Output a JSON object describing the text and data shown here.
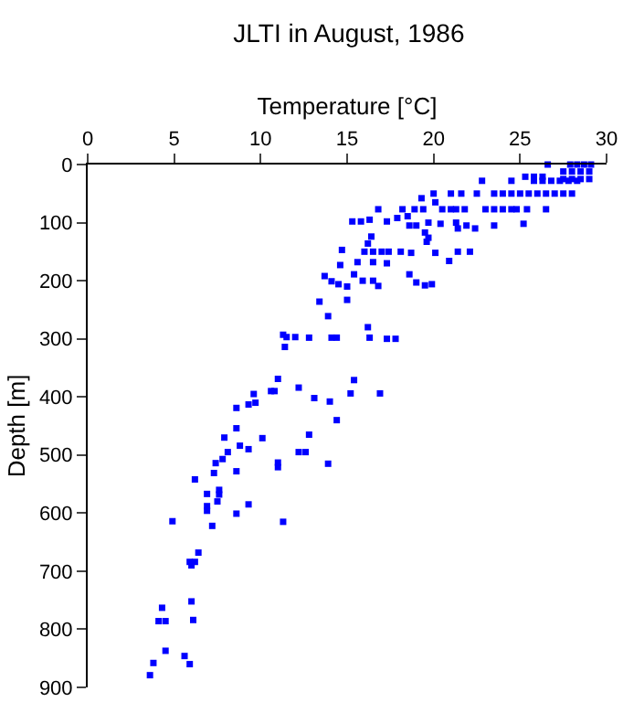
{
  "chart_data": {
    "type": "scatter",
    "title": "JLTI in August, 1986",
    "xlabel": "Temperature [°C]",
    "ylabel": "Depth [m]",
    "marker": "square",
    "grid": false,
    "xlim": [
      0,
      30
    ],
    "xticks": [
      0,
      5,
      10,
      15,
      20,
      25,
      30
    ],
    "ylim": [
      900,
      0
    ],
    "yticks": [
      0,
      100,
      200,
      300,
      400,
      500,
      600,
      700,
      800,
      900
    ],
    "series": [
      {
        "color": "#0000ff",
        "x": [
          26.6,
          27.9,
          28.3,
          28.7,
          29.1,
          27.5,
          28,
          28.5,
          29,
          25.3,
          25.8,
          26.3,
          27.5,
          28,
          28.5,
          29,
          22.8,
          24.5,
          25.8,
          26.3,
          26.8,
          27.3,
          27.8,
          28.3,
          20,
          21,
          21.6,
          22.5,
          23.5,
          24,
          24.5,
          25,
          25.5,
          26,
          26.5,
          27,
          27.5,
          28,
          19.3,
          20.1,
          16.8,
          18.2,
          18.9,
          19.4,
          20.5,
          21,
          21.3,
          21.8,
          23,
          23.5,
          24,
          24.5,
          24.8,
          25.4,
          26.5,
          18.5,
          17.9,
          15.3,
          15.8,
          16.3,
          17.3,
          18.6,
          19,
          19.7,
          20.4,
          21.3,
          21.4,
          21.9,
          22.4,
          23.5,
          25.2,
          19.5,
          19.7,
          16.4,
          19.6,
          16.2,
          14.7,
          16,
          16.5,
          17,
          17.4,
          18.1,
          18.7,
          20.1,
          21.4,
          22.1,
          15.6,
          16.5,
          17.3,
          14.6,
          20.9,
          13.7,
          14.1,
          14.5,
          15,
          15.4,
          15.9,
          16.5,
          16.8,
          18.6,
          19,
          19.5,
          19.9,
          13.4,
          15,
          13.9,
          16.2,
          11.3,
          11.5,
          12,
          12.8,
          14.1,
          14.4,
          16.3,
          17.3,
          17.8,
          11.4,
          11,
          15.4,
          12.2,
          10.8,
          15.2,
          16.9,
          13.1,
          14,
          9.6,
          10.6,
          8.6,
          9.3,
          9.7,
          8.6,
          7.9,
          8.8,
          10.1,
          8.1,
          9.3,
          7.8,
          7.4,
          12.8,
          14.4,
          12.2,
          12.6,
          11,
          11,
          13.9,
          7.3,
          8.6,
          6.2,
          7.6,
          7.6,
          6.9,
          7.5,
          6.9,
          6.9,
          9.3,
          8.6,
          7.2,
          4.9,
          11.3,
          6.4,
          5.9,
          6.2,
          6,
          6,
          6.1,
          4.3,
          4.1,
          4.5,
          4.5,
          5.6,
          3.8,
          5.9,
          3.6
        ],
        "values": [
          0,
          0,
          0,
          0,
          0,
          12,
          12,
          12,
          12,
          21,
          21,
          21,
          25,
          25,
          25,
          25,
          28,
          28,
          28,
          28,
          28,
          28,
          28,
          28,
          50,
          50,
          50,
          50,
          50,
          50,
          50,
          50,
          50,
          50,
          50,
          50,
          50,
          50,
          58,
          65,
          77,
          77,
          77,
          77,
          77,
          77,
          77,
          77,
          77,
          77,
          77,
          77,
          77,
          77,
          77,
          89,
          92,
          98,
          98,
          95,
          98,
          105,
          105,
          100,
          102,
          100,
          110,
          105,
          110,
          105,
          102,
          117,
          126,
          124,
          133,
          136,
          147,
          150,
          150,
          150,
          150,
          150,
          152,
          152,
          150,
          150,
          168,
          168,
          170,
          173,
          166,
          192,
          201,
          206,
          210,
          189,
          200,
          200,
          209,
          189,
          203,
          208,
          206,
          236,
          233,
          261,
          280,
          293,
          297,
          297,
          298,
          298,
          298,
          298,
          300,
          300,
          314,
          369,
          371,
          384,
          390,
          394,
          394,
          402,
          408,
          395,
          390,
          419,
          413,
          410,
          454,
          470,
          484,
          471,
          495,
          490,
          507,
          514,
          465,
          440,
          495,
          495,
          513,
          521,
          515,
          531,
          528,
          542,
          560,
          568,
          567,
          580,
          588,
          596,
          585,
          601,
          622,
          614,
          615,
          668,
          684,
          684,
          690,
          752,
          784,
          763,
          786,
          786,
          837,
          846,
          858,
          860,
          879
        ]
      }
    ]
  }
}
